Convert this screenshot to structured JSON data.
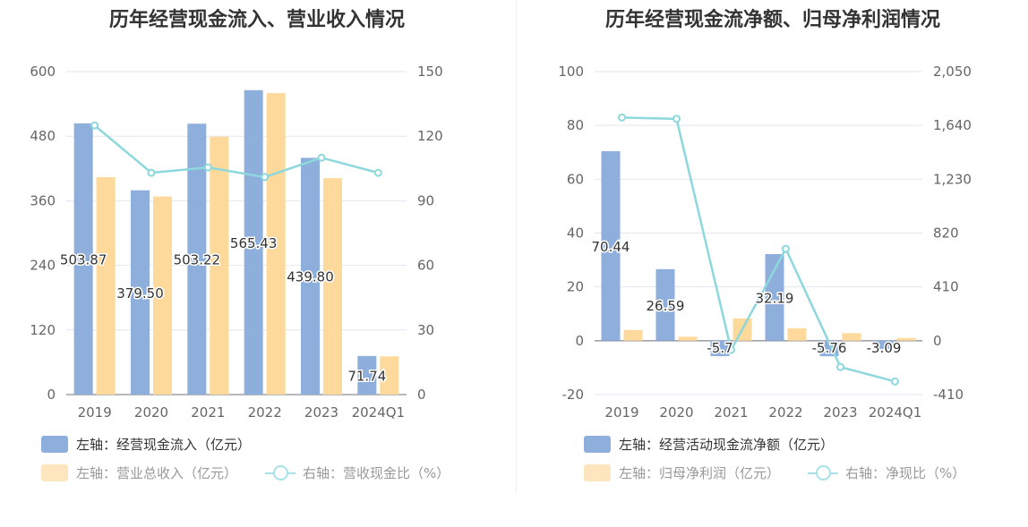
{
  "charts": [
    {
      "title": "历年经营现金流入、营业收入情况",
      "legend": {
        "bar1": "左轴：经营现金流入（亿元）",
        "bar2": "左轴：营业总收入（亿元）",
        "line": "右轴：营收现金比（%）"
      }
    },
    {
      "title": "历年经营现金流净额、归母净利润情况",
      "legend": {
        "bar1": "左轴：经营活动现金流净额（亿元）",
        "bar2": "左轴：归母净利润（亿元）",
        "line": "右轴：净现比（%）"
      }
    }
  ],
  "colors": {
    "bar1": "#8eaedc",
    "bar2": "#fdd99b",
    "line": "#8dd8dc",
    "grid": "#e3e6ef",
    "axis_text": "#666666"
  },
  "chart_data": [
    {
      "type": "bar",
      "title": "历年经营现金流入、营业收入情况",
      "categories": [
        "2019",
        "2020",
        "2021",
        "2022",
        "2023",
        "2024Q1"
      ],
      "left_axis": {
        "ticks": [
          "0",
          "120",
          "240",
          "360",
          "480",
          "600"
        ],
        "range": [
          0,
          600
        ]
      },
      "right_axis": {
        "ticks": [
          "0",
          "30",
          "60",
          "90",
          "120",
          "150"
        ],
        "range": [
          0,
          150
        ]
      },
      "series": [
        {
          "name": "左轴：经营现金流入（亿元）",
          "type": "bar",
          "axis": "left",
          "values": [
            503.87,
            379.5,
            503.22,
            565.43,
            439.8,
            71.74
          ],
          "labels": [
            "503.87",
            "379.50",
            "503.22",
            "565.43",
            "439.80",
            "71.74"
          ]
        },
        {
          "name": "左轴：营业总收入（亿元）",
          "type": "bar",
          "axis": "left",
          "values": [
            404,
            368,
            479,
            560,
            402,
            71
          ]
        },
        {
          "name": "右轴：营收现金比（%）",
          "type": "line",
          "axis": "right",
          "values": [
            125,
            103,
            105.5,
            101,
            110,
            103
          ]
        }
      ],
      "legend_position": "bottom-left",
      "grid": true
    },
    {
      "type": "bar",
      "title": "历年经营现金流净额、归母净利润情况",
      "categories": [
        "2019",
        "2020",
        "2021",
        "2022",
        "2023",
        "2024Q1"
      ],
      "left_axis": {
        "ticks": [
          "-20",
          "0",
          "20",
          "40",
          "60",
          "80",
          "100"
        ],
        "range": [
          -20,
          100
        ]
      },
      "right_axis": {
        "ticks": [
          "-410",
          "0",
          "410",
          "820",
          "1,230",
          "1,640",
          "2,050"
        ],
        "range": [
          -410,
          2050
        ]
      },
      "series": [
        {
          "name": "左轴：经营活动现金流净额（亿元）",
          "type": "bar",
          "axis": "left",
          "values": [
            70.44,
            26.59,
            -5.7,
            32.19,
            -5.76,
            -3.09
          ],
          "labels": [
            "70.44",
            "26.59",
            "-5.7",
            "32.19",
            "-5.76",
            "-3.09"
          ]
        },
        {
          "name": "左轴：归母净利润（亿元）",
          "type": "bar",
          "axis": "left",
          "values": [
            4.0,
            1.5,
            8.3,
            4.6,
            2.8,
            1.0
          ]
        },
        {
          "name": "右轴：净现比（%）",
          "type": "line",
          "axis": "right",
          "values": [
            1700,
            1690,
            -70,
            700,
            -200,
            -310
          ]
        }
      ],
      "legend_position": "bottom-left",
      "grid": true
    }
  ]
}
